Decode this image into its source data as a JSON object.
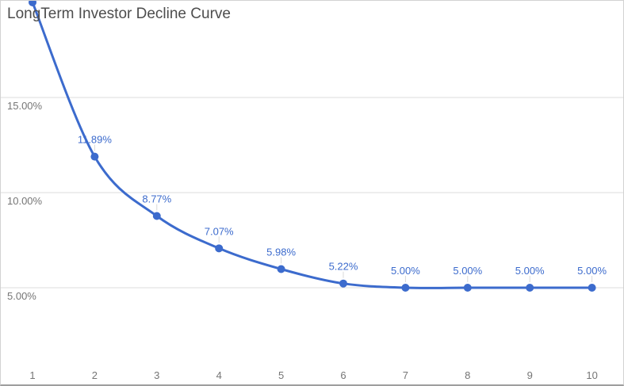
{
  "chart_data": {
    "type": "line",
    "title": "LongTerm Investor Decline Curve",
    "xlabel": "",
    "ylabel": "",
    "x": [
      1,
      2,
      3,
      4,
      5,
      6,
      7,
      8,
      9,
      10
    ],
    "x_tick_labels": [
      "1",
      "2",
      "3",
      "4",
      "5",
      "6",
      "7",
      "8",
      "9",
      "10"
    ],
    "values": [
      20.0,
      11.89,
      8.77,
      7.07,
      5.98,
      5.22,
      5.0,
      5.0,
      5.0,
      5.0
    ],
    "point_labels": [
      "",
      "11.89%",
      "8.77%",
      "7.07%",
      "5.98%",
      "5.22%",
      "5.00%",
      "5.00%",
      "5.00%",
      "5.00%"
    ],
    "y_axis": {
      "ticks": [
        {
          "value": 15,
          "label": "15.00%"
        },
        {
          "value": 10,
          "label": "10.00%"
        },
        {
          "value": 5,
          "label": "5.00%"
        }
      ],
      "gridlines": true
    },
    "legend": "none",
    "line_smoothing": true,
    "first_point_clipped_at_top": true,
    "colors": {
      "series": "#3c6bcd",
      "data_label": "#3c6bcd",
      "grid": "#dcdcdc",
      "axis_text": "#757575",
      "title_text": "#4d4d4d",
      "leader_line": "#d9d9d9",
      "background": "#ffffff"
    }
  }
}
